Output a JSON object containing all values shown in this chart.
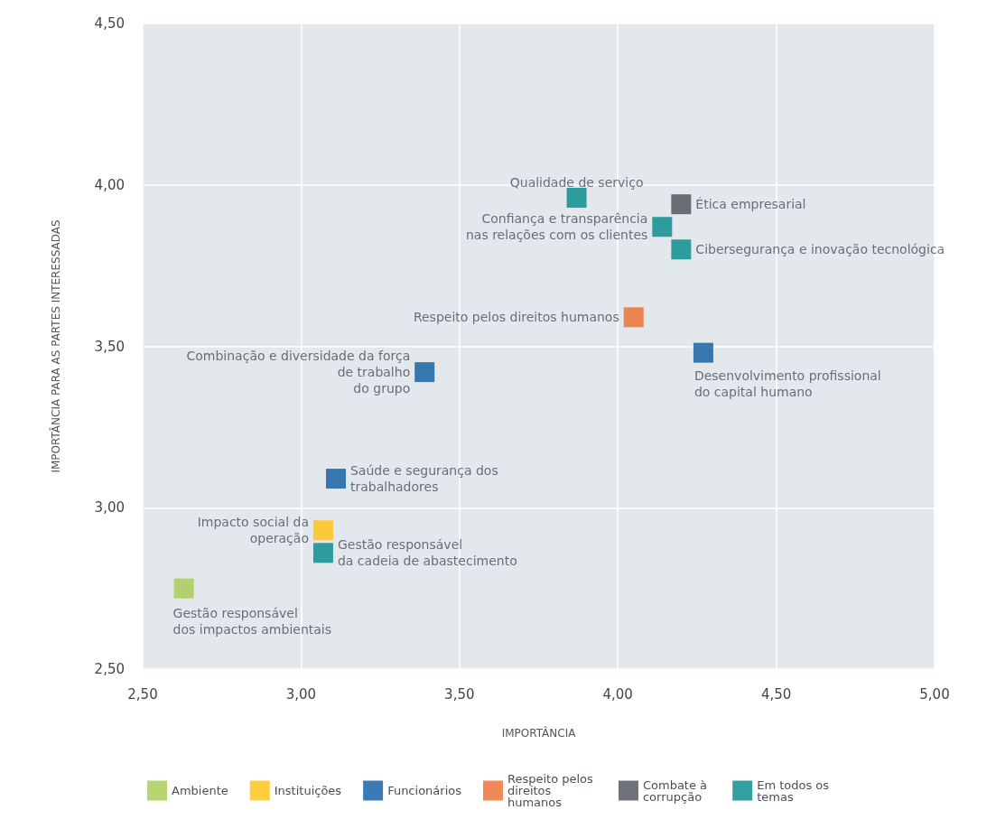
{
  "chart_data": {
    "type": "scatter",
    "xlabel": "IMPORTÂNCIA",
    "ylabel": "IMPORTÂNCIA PARA AS PARTES INTERESSADAS",
    "xlim": [
      2.5,
      5
    ],
    "ylim": [
      2.5,
      4.5
    ],
    "xticks": [
      {
        "value": 2.5,
        "label": "2,50"
      },
      {
        "value": 3,
        "label": "3,00"
      },
      {
        "value": 3.5,
        "label": "3,50"
      },
      {
        "value": 4,
        "label": "4,00"
      },
      {
        "value": 4.5,
        "label": "4,50"
      },
      {
        "value": 5,
        "label": "5,00"
      }
    ],
    "yticks": [
      {
        "value": 2.5,
        "label": "2,50"
      },
      {
        "value": 3,
        "label": "3,00"
      },
      {
        "value": 3.5,
        "label": "3,50"
      },
      {
        "value": 4,
        "label": "4,00"
      },
      {
        "value": 4.5,
        "label": "4,50"
      }
    ],
    "grid": true,
    "legend": "bottom",
    "marker": "square",
    "series": [
      {
        "name": "Ambiente",
        "color": "#a5c94e",
        "x": [
          2.63
        ],
        "values": [
          2.75
        ]
      },
      {
        "name": "Instituições",
        "color": "#ffc20e",
        "x": [
          3.07
        ],
        "values": [
          2.93
        ]
      },
      {
        "name": "Funcionários",
        "color": "#0a5aa0",
        "x": [
          4.27,
          3.39,
          3.11
        ],
        "values": [
          3.48,
          3.42,
          3.09
        ]
      },
      {
        "name": "Respeito pelos direitos humanos",
        "color": "#ee6a2a",
        "x": [
          4.05
        ],
        "values": [
          3.59
        ]
      },
      {
        "name": "Combate à corrupção",
        "color": "#4a4f57",
        "x": [
          4.2
        ],
        "values": [
          3.94
        ]
      },
      {
        "name": "Em todos os temas",
        "color": "#00878a",
        "x": [
          3.87,
          4.14,
          4.2,
          3.07
        ],
        "values": [
          3.96,
          3.87,
          3.8,
          2.86
        ]
      }
    ],
    "annotations": [
      {
        "text": "Qualidade de serviço",
        "x": 3.87,
        "y": 3.96
      },
      {
        "text": "Ética empresarial",
        "x": 4.2,
        "y": 3.94
      },
      {
        "text": "Confiança e transparência\nnas relações com os clientes",
        "x": 4.14,
        "y": 3.87
      },
      {
        "text": "Cibersegurança e inovação tecnológica",
        "x": 4.2,
        "y": 3.8
      },
      {
        "text": "Respeito pelos direitos humanos",
        "x": 4.05,
        "y": 3.59
      },
      {
        "text": "Desenvolvimento profissional\ndo capital humano",
        "x": 4.27,
        "y": 3.48
      },
      {
        "text": "Combinação e diversidade da força\nde trabalho\ndo grupo",
        "x": 3.39,
        "y": 3.42
      },
      {
        "text": "Saúde e segurança dos\ntrabalhadores",
        "x": 3.11,
        "y": 3.09
      },
      {
        "text": "Impacto social da\noperação",
        "x": 3.07,
        "y": 2.93
      },
      {
        "text": "Gestão responsável\nda cadeia de abastecimento",
        "x": 3.07,
        "y": 2.86
      },
      {
        "text": "Gestão responsável\ndos impactos ambientais",
        "x": 2.63,
        "y": 2.75
      }
    ]
  }
}
